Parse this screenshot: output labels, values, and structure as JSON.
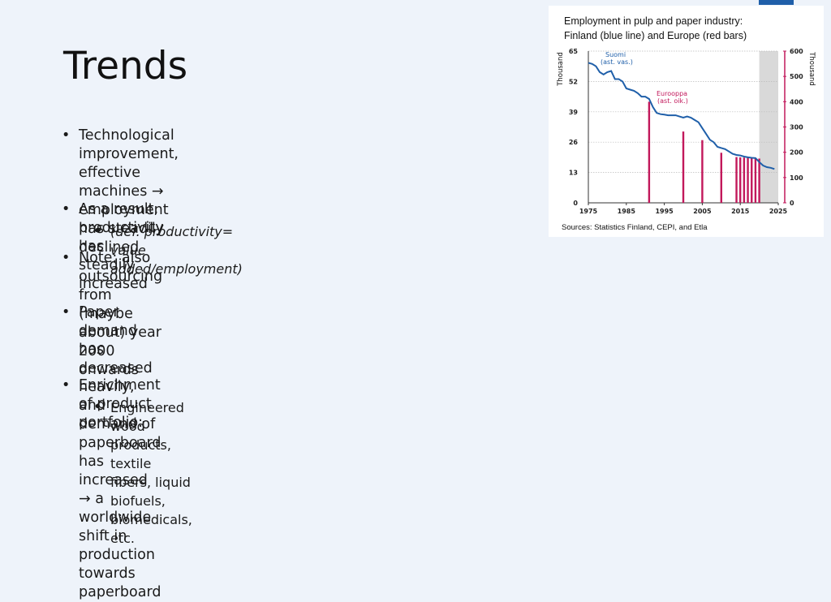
{
  "slide": {
    "title": "Trends",
    "bullets": [
      {
        "level": 1,
        "lines": [
          "Technological improvement, effective machines →",
          "employment has steadily declined"
        ]
      },
      {
        "level": 1,
        "lines": [
          "As a result, productivity has steadily increased"
        ]
      },
      {
        "level": 2,
        "italic": true,
        "lines": [
          "(def. productivity= value added/employment)"
        ]
      },
      {
        "level": 1,
        "lines": [
          "Note: also outsourcing from (maybe about) year 2000 onwards"
        ]
      },
      {
        "level": 1,
        "lines": [
          "Paper demand has decreased heavily, and demand of paperboard has increased → a worldwide",
          "shift in production towards paperboard"
        ]
      },
      {
        "level": 1,
        "lines": [
          "Enrichment of product portfolio:"
        ]
      },
      {
        "level": 2,
        "lines": [
          "Engineered wood products, textile fibers, liquid biofuels, biomedicals, etc."
        ]
      }
    ]
  },
  "figure": {
    "caption_line1": "Employment in pulp and paper industry:",
    "caption_line2": "Finland (blue line) and Europe (red bars)",
    "source": "Sources: Statistics Finland, CEPI, and Etla"
  },
  "chart_data": {
    "type": "line",
    "colors": {
      "line": "#1f5fa9",
      "bars": "#c2185b",
      "forecast_shade": "#d9d9d9",
      "grid": "#bbbbbb"
    },
    "xlim": [
      1975,
      2025
    ],
    "x_ticks": [
      "1975",
      "1985",
      "1995",
      "2005",
      "2015",
      "2025"
    ],
    "y_left": {
      "label": "Thousand",
      "ylim": [
        0,
        65
      ],
      "ticks": [
        "0",
        "13",
        "26",
        "39",
        "52",
        "65"
      ]
    },
    "y_right": {
      "label": "Thousand",
      "ylim": [
        0,
        600
      ],
      "ticks": [
        "0",
        "100",
        "200",
        "300",
        "400",
        "500",
        "600"
      ]
    },
    "forecast_shade_x": [
      2020,
      2025
    ],
    "grid": true,
    "series": [
      {
        "name": "Suomi",
        "sublabel": "(ast. vas.)",
        "axis": "left",
        "x": [
          1975,
          1976,
          1977,
          1978,
          1979,
          1980,
          1981,
          1982,
          1983,
          1984,
          1985,
          1986,
          1987,
          1988,
          1989,
          1990,
          1991,
          1992,
          1993,
          1994,
          1995,
          1996,
          1997,
          1998,
          1999,
          2000,
          2001,
          2002,
          2003,
          2004,
          2005,
          2006,
          2007,
          2008,
          2009,
          2010,
          2011,
          2012,
          2013,
          2014,
          2015,
          2016,
          2017,
          2018,
          2019,
          2020,
          2021,
          2022,
          2023,
          2024
        ],
        "y": [
          60,
          59.5,
          58.5,
          56,
          55,
          56,
          56.5,
          53,
          53,
          52,
          49,
          48.5,
          48,
          47,
          45.5,
          45.5,
          44.5,
          41,
          38.5,
          38,
          37.8,
          37.5,
          37.5,
          37.5,
          37,
          36.5,
          37,
          36.5,
          35.5,
          34.5,
          32,
          29.5,
          27,
          26,
          24,
          23.5,
          23,
          22,
          21,
          20.5,
          20.3,
          19.8,
          19.5,
          19.3,
          19.2,
          17.5,
          16,
          15.3,
          15,
          14.5
        ]
      },
      {
        "name": "Eurooppa",
        "sublabel": "(ast. oik.)",
        "axis": "right",
        "type": "bar",
        "x": [
          1991,
          2000,
          2005,
          2010,
          2014,
          2015,
          2016,
          2017,
          2018,
          2019,
          2020
        ],
        "y": [
          400,
          282,
          248,
          198,
          181,
          180,
          179,
          178,
          177,
          176,
          175
        ]
      }
    ]
  }
}
